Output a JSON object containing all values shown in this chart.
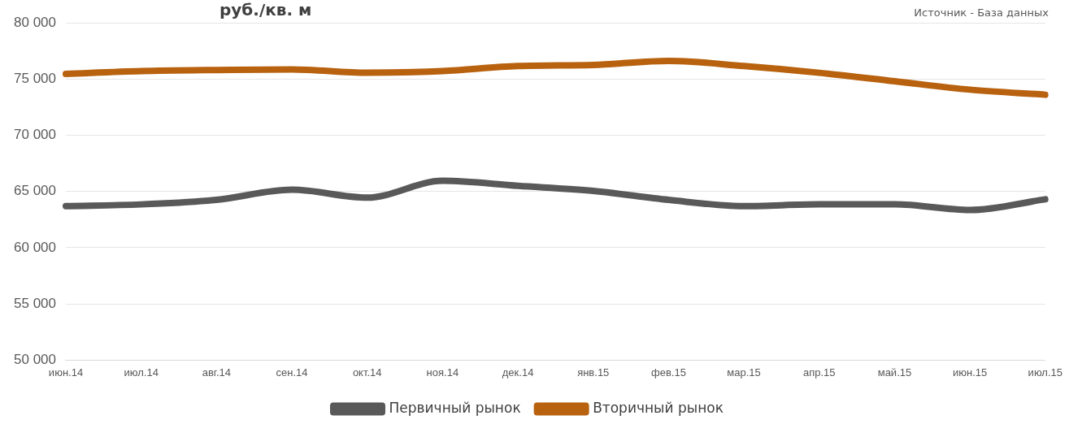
{
  "chart_data": {
    "type": "line",
    "title": "руб./кв. м",
    "annotations": [
      "Источник - База данных"
    ],
    "categories": [
      "июн.14",
      "июл.14",
      "авг.14",
      "сен.14",
      "окт.14",
      "ноя.14",
      "дек.14",
      "янв.15",
      "фев.15",
      "мар.15",
      "апр.15",
      "май.15",
      "июн.15",
      "июл.15"
    ],
    "series": [
      {
        "name": "Первичный рынок",
        "color": "#595959",
        "values": [
          63700,
          63850,
          64250,
          65150,
          64450,
          65950,
          65500,
          65050,
          64250,
          63700,
          63850,
          63850,
          63350,
          64300
        ]
      },
      {
        "name": "Вторичный рынок",
        "color": "#b8620f",
        "values": [
          75450,
          75700,
          75800,
          75850,
          75550,
          75700,
          76150,
          76250,
          76600,
          76150,
          75550,
          74800,
          74050,
          73600
        ]
      }
    ],
    "ylim": [
      50000,
      80000
    ],
    "yticks": [
      {
        "value": 50000,
        "label": "50 000"
      },
      {
        "value": 55000,
        "label": "55 000"
      },
      {
        "value": 60000,
        "label": "60 000"
      },
      {
        "value": 65000,
        "label": "65 000"
      },
      {
        "value": 70000,
        "label": "70 000"
      },
      {
        "value": 75000,
        "label": "75 000"
      },
      {
        "value": 80000,
        "label": "80 000"
      }
    ],
    "grid": "y",
    "legend": "bottom",
    "marker": "none",
    "line_style": "solid"
  }
}
